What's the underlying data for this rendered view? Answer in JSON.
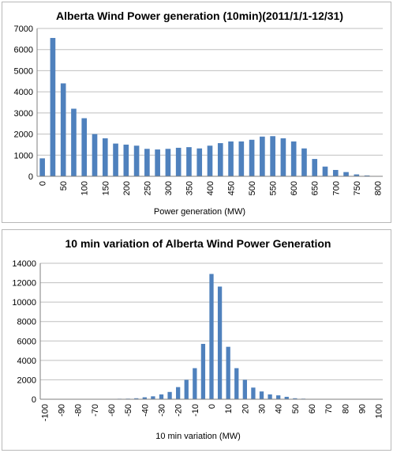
{
  "colors": {
    "bar": "#4f81bd",
    "grid": "#bfbfbf",
    "axis": "#7f7f7f"
  },
  "chart_data": [
    {
      "type": "bar",
      "title": "Alberta Wind Power generation (10min)(2011/1/1-12/31)",
      "xlabel": "Power generation (MW)",
      "ylabel": "",
      "ylim": [
        0,
        7000
      ],
      "yticks": [
        "0",
        "1000",
        "2000",
        "3000",
        "4000",
        "5000",
        "6000",
        "7000"
      ],
      "xtick_labels": [
        "0",
        "50",
        "100",
        "150",
        "200",
        "250",
        "300",
        "350",
        "400",
        "450",
        "500",
        "550",
        "600",
        "650",
        "700",
        "750",
        "800"
      ],
      "categories": [
        0,
        25,
        50,
        75,
        100,
        125,
        150,
        175,
        200,
        225,
        250,
        275,
        300,
        325,
        350,
        375,
        400,
        425,
        450,
        475,
        500,
        525,
        550,
        575,
        600,
        625,
        650,
        675,
        700,
        725,
        750,
        775,
        800
      ],
      "values": [
        850,
        6550,
        4400,
        3200,
        2750,
        2000,
        1800,
        1550,
        1500,
        1450,
        1300,
        1270,
        1300,
        1350,
        1380,
        1320,
        1450,
        1570,
        1650,
        1650,
        1730,
        1880,
        1900,
        1800,
        1650,
        1320,
        820,
        460,
        300,
        200,
        90,
        40,
        0
      ],
      "grid": true,
      "legend": "none"
    },
    {
      "type": "bar",
      "title": "10 min variation of Alberta Wind Power Generation",
      "xlabel": "10 min variation  (MW)",
      "ylabel": "",
      "ylim": [
        0,
        14000
      ],
      "yticks": [
        "0",
        "2000",
        "4000",
        "6000",
        "8000",
        "10000",
        "12000",
        "14000"
      ],
      "xtick_labels": [
        "-100",
        "-90",
        "-80",
        "-70",
        "-60",
        "-50",
        "-40",
        "-30",
        "-20",
        "-10",
        "0",
        "10",
        "20",
        "30",
        "40",
        "50",
        "60",
        "70",
        "80",
        "90",
        "100"
      ],
      "categories": [
        -100,
        -95,
        -90,
        -85,
        -80,
        -75,
        -70,
        -65,
        -60,
        -55,
        -50,
        -45,
        -40,
        -35,
        -30,
        -25,
        -20,
        -15,
        -10,
        -5,
        0,
        5,
        10,
        15,
        20,
        25,
        30,
        35,
        40,
        45,
        50,
        55,
        60,
        65,
        70,
        75,
        80,
        85,
        90,
        95,
        100
      ],
      "values": [
        30,
        30,
        30,
        30,
        30,
        30,
        30,
        30,
        40,
        50,
        60,
        100,
        200,
        300,
        500,
        750,
        1250,
        2000,
        3200,
        5700,
        12900,
        11600,
        5400,
        3200,
        2000,
        1200,
        800,
        500,
        400,
        250,
        100,
        60,
        40,
        30,
        30,
        30,
        30,
        30,
        30,
        30,
        30
      ],
      "grid": true,
      "legend": "none"
    }
  ]
}
